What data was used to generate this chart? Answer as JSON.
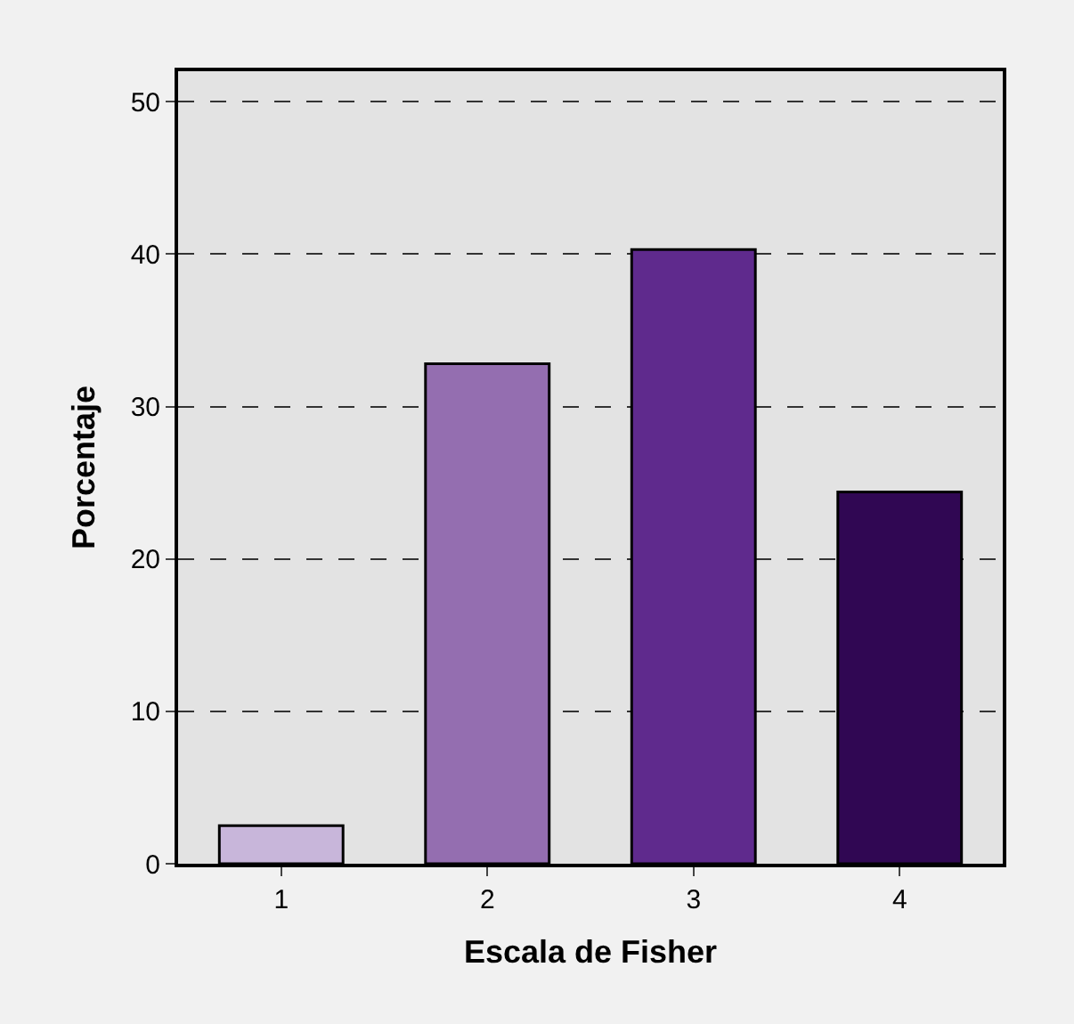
{
  "chart_data": {
    "type": "bar",
    "xlabel": "Escala de Fisher",
    "ylabel": "Porcentaje",
    "categories": [
      "1",
      "2",
      "3",
      "4"
    ],
    "values": [
      2.5,
      32.8,
      40.3,
      24.4
    ],
    "colors": [
      "#c8b6da",
      "#946eb0",
      "#5f2a8d",
      "#300753"
    ],
    "ylim": [
      0,
      52
    ],
    "yticks": [
      0,
      10,
      20,
      30,
      40,
      50
    ],
    "grid": "y"
  }
}
